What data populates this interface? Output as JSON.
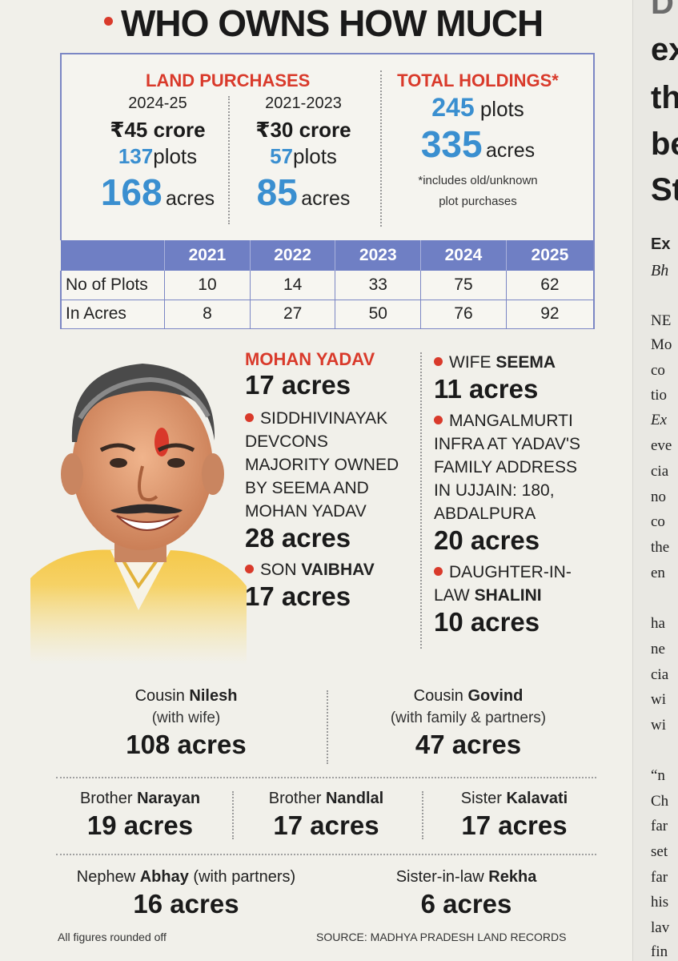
{
  "title": "WHO OWNS HOW MUCH",
  "land_purchases": {
    "heading": "LAND PURCHASES",
    "periods": [
      {
        "year": "2024-25",
        "crore": "₹45 crore",
        "plots_num": "137",
        "plots_unit": "plots",
        "acres_num": "168",
        "acres_unit": "acres"
      },
      {
        "year": "2021-2023",
        "crore": "₹30 crore",
        "plots_num": "57",
        "plots_unit": "plots",
        "acres_num": "85",
        "acres_unit": "acres"
      }
    ]
  },
  "total_holdings": {
    "heading": "TOTAL HOLDINGS*",
    "plots_num": "245",
    "plots_unit": "plots",
    "acres_num": "335",
    "acres_unit": "acres",
    "note_line1": "*includes old/unknown",
    "note_line2": "plot purchases"
  },
  "table": {
    "years": [
      "2021",
      "2022",
      "2023",
      "2024",
      "2025"
    ],
    "rows": [
      {
        "label": "No of Plots",
        "values": [
          "10",
          "14",
          "33",
          "75",
          "62"
        ]
      },
      {
        "label": "In Acres",
        "values": [
          "8",
          "27",
          "50",
          "76",
          "92"
        ]
      }
    ]
  },
  "mohan": {
    "name": "MOHAN YADAV",
    "acres": "17 acres"
  },
  "siddhivinayak": {
    "lines": [
      "SIDDHIVINAYAK",
      "DEVCONS",
      "MAJORITY OWNED",
      "BY SEEMA AND",
      "MOHAN YADAV"
    ],
    "acres": "28 acres"
  },
  "son": {
    "rel": "SON",
    "name": "VAIBHAV",
    "acres": "17 acres"
  },
  "wife": {
    "rel": "WIFE",
    "name": "SEEMA",
    "acres": "11 acres"
  },
  "mangalmurti": {
    "lines": [
      "MANGALMURTI",
      "INFRA AT YADAV'S",
      "FAMILY ADDRESS",
      "IN UJJAIN: 180,",
      "ABDALPURA"
    ],
    "acres": "20 acres"
  },
  "daughter": {
    "rel": "DAUGHTER-IN-",
    "rel2": "LAW",
    "name": "SHALINI",
    "acres": "10 acres"
  },
  "relatives": {
    "nilesh": {
      "rel": "Cousin",
      "name": "Nilesh",
      "sub": "(with wife)",
      "acres": "108 acres"
    },
    "govind": {
      "rel": "Cousin",
      "name": "Govind",
      "sub": "(with family & partners)",
      "acres": "47 acres"
    },
    "narayan": {
      "rel": "Brother",
      "name": "Narayan",
      "acres": "19 acres"
    },
    "nandlal": {
      "rel": "Brother",
      "name": "Nandlal",
      "acres": "17 acres"
    },
    "kalavati": {
      "rel": "Sister",
      "name": "Kalavati",
      "acres": "17 acres"
    },
    "abhay": {
      "rel": "Nephew",
      "name": "Abhay",
      "sub": "(with partners)",
      "acres": "16 acres"
    },
    "rekha": {
      "rel": "Sister-in-law",
      "name": "Rekha",
      "acres": "6 acres"
    }
  },
  "footer": {
    "left": "All figures rounded off",
    "right": "SOURCE: MADHYA PRADESH LAND RECORDS"
  },
  "colors": {
    "accent_red": "#d93a2b",
    "accent_blue": "#3a8fd0",
    "table_header": "#6f7fc4"
  },
  "adjacent_column": {
    "headline": [
      "D",
      "ex",
      "th",
      "be",
      "St"
    ],
    "byline": "Ex",
    "byline2": "Bh",
    "body": [
      "NE",
      "Mo",
      "co",
      "tio",
      "Ex",
      "eve",
      "cia",
      "no",
      "co",
      "the",
      "en",
      "ha",
      "ne",
      "cia",
      "wi",
      "wi",
      "“n",
      "Ch",
      "far",
      "set",
      "far",
      "his",
      "lav",
      "fin"
    ]
  }
}
